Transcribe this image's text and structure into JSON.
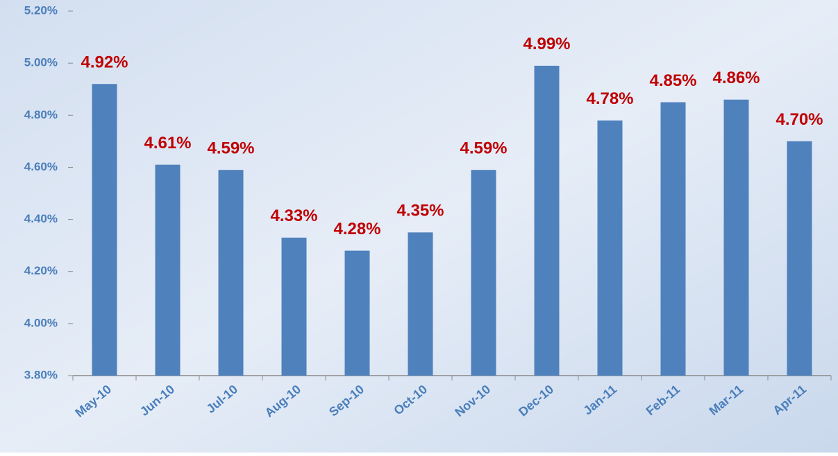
{
  "chart_data": {
    "type": "bar",
    "categories": [
      "May-10",
      "Jun-10",
      "Jul-10",
      "Aug-10",
      "Sep-10",
      "Oct-10",
      "Nov-10",
      "Dec-10",
      "Jan-11",
      "Feb-11",
      "Mar-11",
      "Apr-11"
    ],
    "values": [
      4.92,
      4.61,
      4.59,
      4.33,
      4.28,
      4.35,
      4.59,
      4.99,
      4.78,
      4.85,
      4.86,
      4.7
    ],
    "value_labels": [
      "4.92%",
      "4.61%",
      "4.59%",
      "4.33%",
      "4.28%",
      "4.35%",
      "4.59%",
      "4.99%",
      "4.78%",
      "4.85%",
      "4.86%",
      "4.70%"
    ],
    "color": "#4f81bd",
    "value_label_color": "#c00000",
    "ylim": [
      3.8,
      5.2
    ],
    "yticks": [
      {
        "value": 3.8,
        "label": "3.80%"
      },
      {
        "value": 4.0,
        "label": "4.00%"
      },
      {
        "value": 4.2,
        "label": "4.20%"
      },
      {
        "value": 4.4,
        "label": "4.40%"
      },
      {
        "value": 4.6,
        "label": "4.60%"
      },
      {
        "value": 4.8,
        "label": "4.80%"
      },
      {
        "value": 5.0,
        "label": "5.00%"
      },
      {
        "value": 5.2,
        "label": "5.20%"
      }
    ],
    "grid": false
  }
}
